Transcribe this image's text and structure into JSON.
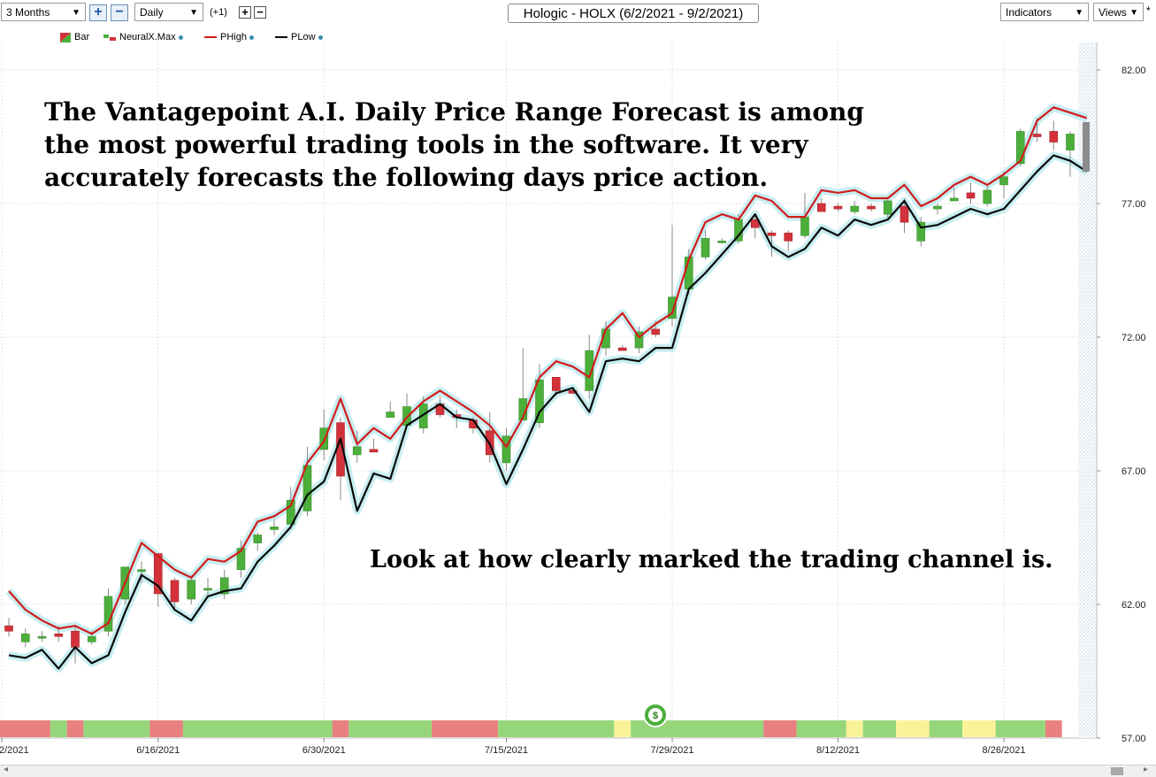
{
  "toolbar": {
    "period": "3 Months",
    "interval": "Daily",
    "offset": "(+1)",
    "zoom_in_symbol": "+",
    "zoom_out_symbol": "−",
    "chart_title": "Hologic - HOLX (6/2/2021 - 9/2/2021)",
    "indicators_label": "Indicators",
    "views_label": "Views",
    "asterisk": "*"
  },
  "legend": [
    {
      "label": "Bar"
    },
    {
      "label": "NeuralX.Max"
    },
    {
      "label": "PHigh",
      "color": "#d21c1c"
    },
    {
      "label": "PLow",
      "color": "#0a0a0a"
    }
  ],
  "annotations": {
    "headline": [
      "The Vantagepoint A.I. Daily Price Range Forecast is among",
      "the most powerful trading tools in the software.  It very",
      "accurately forecasts the following days price action."
    ],
    "channel_note": "Look at how clearly marked the trading channel is."
  },
  "colors": {
    "up": "#4caf3a",
    "down": "#d3323a",
    "phigh": "#d21c1c",
    "plow": "#0a0a0a",
    "glow": "#b6e8ec",
    "strip_red": "#e88080",
    "strip_green": "#96d67a",
    "strip_yellow": "#fbf39a",
    "grid": "#e2e2e2"
  },
  "icons": {
    "signal_marker": "dollar-signal-icon"
  },
  "chart_data": {
    "type": "candlestick",
    "ylim": [
      57,
      83.5
    ],
    "y_ticks": [
      "82.00",
      "77.00",
      "72.00",
      "67.00",
      "62.00",
      "57.00"
    ],
    "y_tick_values": [
      82,
      77,
      72,
      67,
      62,
      57
    ],
    "x_tick_labels": [
      "2/2021",
      "6/16/2021",
      "6/30/2021",
      "7/15/2021",
      "7/29/2021",
      "8/12/2021",
      "8/26/2021"
    ],
    "x_tick_index": [
      0,
      9,
      19,
      30,
      40,
      50,
      60
    ],
    "n_slots": 66,
    "candles": [
      {
        "o": 61.2,
        "h": 61.5,
        "l": 60.8,
        "c": 61.0
      },
      {
        "o": 60.6,
        "h": 61.1,
        "l": 60.4,
        "c": 60.9
      },
      {
        "o": 60.8,
        "h": 61.0,
        "l": 60.6,
        "c": 60.8
      },
      {
        "o": 60.9,
        "h": 61.2,
        "l": 60.6,
        "c": 60.8
      },
      {
        "o": 61.0,
        "h": 61.2,
        "l": 59.8,
        "c": 60.4
      },
      {
        "o": 60.6,
        "h": 61.0,
        "l": 60.5,
        "c": 60.8
      },
      {
        "o": 61.0,
        "h": 62.6,
        "l": 60.8,
        "c": 62.3
      },
      {
        "o": 62.2,
        "h": 63.4,
        "l": 62.0,
        "c": 63.4
      },
      {
        "o": 63.3,
        "h": 63.6,
        "l": 62.8,
        "c": 63.3
      },
      {
        "o": 63.9,
        "h": 63.9,
        "l": 61.9,
        "c": 62.4
      },
      {
        "o": 62.9,
        "h": 63.0,
        "l": 61.8,
        "c": 62.1
      },
      {
        "o": 62.2,
        "h": 63.1,
        "l": 62.0,
        "c": 62.9
      },
      {
        "o": 62.6,
        "h": 63.0,
        "l": 62.3,
        "c": 62.6
      },
      {
        "o": 62.4,
        "h": 63.3,
        "l": 62.2,
        "c": 63.0
      },
      {
        "o": 63.3,
        "h": 64.4,
        "l": 63.0,
        "c": 64.1
      },
      {
        "o": 64.3,
        "h": 64.7,
        "l": 64.0,
        "c": 64.6
      },
      {
        "o": 64.8,
        "h": 65.2,
        "l": 64.6,
        "c": 64.9
      },
      {
        "o": 65.0,
        "h": 66.4,
        "l": 64.8,
        "c": 65.9
      },
      {
        "o": 65.5,
        "h": 67.9,
        "l": 65.3,
        "c": 67.2
      },
      {
        "o": 67.8,
        "h": 69.3,
        "l": 67.4,
        "c": 68.6
      },
      {
        "o": 68.8,
        "h": 69.0,
        "l": 65.9,
        "c": 66.8
      },
      {
        "o": 67.6,
        "h": 68.5,
        "l": 67.3,
        "c": 67.9
      },
      {
        "o": 67.8,
        "h": 68.2,
        "l": 67.7,
        "c": 67.7
      },
      {
        "o": 69.0,
        "h": 69.6,
        "l": 69.0,
        "c": 69.2
      },
      {
        "o": 68.7,
        "h": 69.9,
        "l": 68.6,
        "c": 69.4
      },
      {
        "o": 68.6,
        "h": 69.8,
        "l": 68.4,
        "c": 69.5
      },
      {
        "o": 69.5,
        "h": 69.8,
        "l": 69.0,
        "c": 69.1
      },
      {
        "o": 69.1,
        "h": 69.3,
        "l": 68.6,
        "c": 69.0
      },
      {
        "o": 68.9,
        "h": 69.0,
        "l": 68.4,
        "c": 68.6
      },
      {
        "o": 68.5,
        "h": 69.2,
        "l": 67.3,
        "c": 67.6
      },
      {
        "o": 67.3,
        "h": 68.6,
        "l": 67.0,
        "c": 68.3
      },
      {
        "o": 68.9,
        "h": 71.6,
        "l": 68.9,
        "c": 69.7
      },
      {
        "o": 68.8,
        "h": 71.0,
        "l": 68.6,
        "c": 70.4
      },
      {
        "o": 70.5,
        "h": 70.5,
        "l": 69.8,
        "c": 70.0
      },
      {
        "o": 70.0,
        "h": 70.1,
        "l": 69.9,
        "c": 69.9
      },
      {
        "o": 70.0,
        "h": 72.1,
        "l": 69.7,
        "c": 71.5
      },
      {
        "o": 71.6,
        "h": 72.6,
        "l": 71.3,
        "c": 72.3
      },
      {
        "o": 71.6,
        "h": 71.7,
        "l": 71.5,
        "c": 71.5
      },
      {
        "o": 71.6,
        "h": 72.4,
        "l": 71.4,
        "c": 72.2
      },
      {
        "o": 72.3,
        "h": 72.6,
        "l": 72.0,
        "c": 72.1
      },
      {
        "o": 72.7,
        "h": 76.2,
        "l": 72.4,
        "c": 73.5
      },
      {
        "o": 73.8,
        "h": 75.3,
        "l": 73.6,
        "c": 75.0
      },
      {
        "o": 75.0,
        "h": 76.0,
        "l": 74.9,
        "c": 75.7
      },
      {
        "o": 75.6,
        "h": 75.7,
        "l": 75.5,
        "c": 75.6
      },
      {
        "o": 75.6,
        "h": 76.6,
        "l": 75.5,
        "c": 76.4
      },
      {
        "o": 76.4,
        "h": 76.6,
        "l": 75.7,
        "c": 76.1
      },
      {
        "o": 75.9,
        "h": 76.0,
        "l": 75.0,
        "c": 75.8
      },
      {
        "o": 75.9,
        "h": 76.0,
        "l": 75.2,
        "c": 75.6
      },
      {
        "o": 75.8,
        "h": 77.4,
        "l": 75.7,
        "c": 76.5
      },
      {
        "o": 77.0,
        "h": 77.2,
        "l": 76.7,
        "c": 76.7
      },
      {
        "o": 76.9,
        "h": 77.0,
        "l": 76.7,
        "c": 76.8
      },
      {
        "o": 76.7,
        "h": 77.1,
        "l": 76.6,
        "c": 76.9
      },
      {
        "o": 76.9,
        "h": 77.0,
        "l": 76.7,
        "c": 76.8
      },
      {
        "o": 76.6,
        "h": 77.2,
        "l": 76.4,
        "c": 77.1
      },
      {
        "o": 76.9,
        "h": 77.2,
        "l": 75.9,
        "c": 76.3
      },
      {
        "o": 75.6,
        "h": 76.5,
        "l": 75.4,
        "c": 76.3
      },
      {
        "o": 76.8,
        "h": 77.0,
        "l": 76.6,
        "c": 76.9
      },
      {
        "o": 77.1,
        "h": 77.6,
        "l": 77.1,
        "c": 77.2
      },
      {
        "o": 77.4,
        "h": 77.8,
        "l": 77.0,
        "c": 77.2
      },
      {
        "o": 77.0,
        "h": 77.7,
        "l": 76.9,
        "c": 77.5
      },
      {
        "o": 77.7,
        "h": 78.2,
        "l": 77.2,
        "c": 78.0
      },
      {
        "o": 78.5,
        "h": 79.8,
        "l": 78.4,
        "c": 79.7
      },
      {
        "o": 79.6,
        "h": 80.2,
        "l": 79.3,
        "c": 79.5
      },
      {
        "o": 79.7,
        "h": 80.1,
        "l": 79.0,
        "c": 79.3
      },
      {
        "o": 79.0,
        "h": 79.7,
        "l": 78.0,
        "c": 79.6
      }
    ],
    "series": [
      {
        "name": "PHigh",
        "values": [
          62.5,
          61.8,
          61.4,
          61.1,
          61.2,
          60.9,
          61.3,
          62.8,
          64.3,
          63.8,
          63.3,
          63.0,
          63.7,
          63.6,
          64.0,
          65.1,
          65.3,
          65.7,
          67.3,
          68.1,
          69.7,
          68.0,
          68.6,
          68.2,
          69.0,
          69.6,
          70.0,
          69.6,
          69.2,
          68.7,
          67.9,
          69.0,
          70.5,
          71.1,
          70.9,
          70.5,
          72.3,
          72.9,
          72.0,
          72.5,
          72.9,
          74.9,
          76.3,
          76.6,
          76.4,
          77.3,
          77.1,
          76.5,
          76.5,
          77.5,
          77.4,
          77.5,
          77.2,
          77.2,
          77.7,
          76.9,
          77.2,
          77.7,
          78.0,
          77.7,
          78.1,
          78.6,
          80.1,
          80.6,
          80.4,
          80.2
        ]
      },
      {
        "name": "PLow",
        "values": [
          60.1,
          60.0,
          60.3,
          59.6,
          60.4,
          59.8,
          60.1,
          61.7,
          63.1,
          62.7,
          61.8,
          61.4,
          62.3,
          62.5,
          62.6,
          63.6,
          64.2,
          64.9,
          66.1,
          66.6,
          68.2,
          65.5,
          66.9,
          66.7,
          68.7,
          69.1,
          69.5,
          69.0,
          68.9,
          68.0,
          66.5,
          67.8,
          69.2,
          69.9,
          70.1,
          69.2,
          71.1,
          71.2,
          71.1,
          71.6,
          71.6,
          73.8,
          74.4,
          75.1,
          75.8,
          76.6,
          75.4,
          75.0,
          75.3,
          76.1,
          75.8,
          76.4,
          76.2,
          76.4,
          77.1,
          76.1,
          76.2,
          76.5,
          76.8,
          76.6,
          76.8,
          77.5,
          78.2,
          78.8,
          78.6,
          78.2
        ]
      }
    ],
    "signal_strip": [
      {
        "color": "red",
        "span": 3
      },
      {
        "color": "green",
        "span": 1
      },
      {
        "color": "red",
        "span": 1
      },
      {
        "color": "green",
        "span": 4
      },
      {
        "color": "red",
        "span": 2
      },
      {
        "color": "green",
        "span": 9
      },
      {
        "color": "red",
        "span": 1
      },
      {
        "color": "green",
        "span": 5
      },
      {
        "color": "red",
        "span": 4
      },
      {
        "color": "green",
        "span": 7
      },
      {
        "color": "yellow",
        "span": 1
      },
      {
        "color": "green",
        "span": 8
      },
      {
        "color": "red",
        "span": 2
      },
      {
        "color": "green",
        "span": 3
      },
      {
        "color": "yellow",
        "span": 1
      },
      {
        "color": "green",
        "span": 2
      },
      {
        "color": "yellow",
        "span": 2
      },
      {
        "color": "green",
        "span": 2
      },
      {
        "color": "yellow",
        "span": 2
      },
      {
        "color": "green",
        "span": 3
      },
      {
        "color": "red",
        "span": 1
      }
    ]
  }
}
